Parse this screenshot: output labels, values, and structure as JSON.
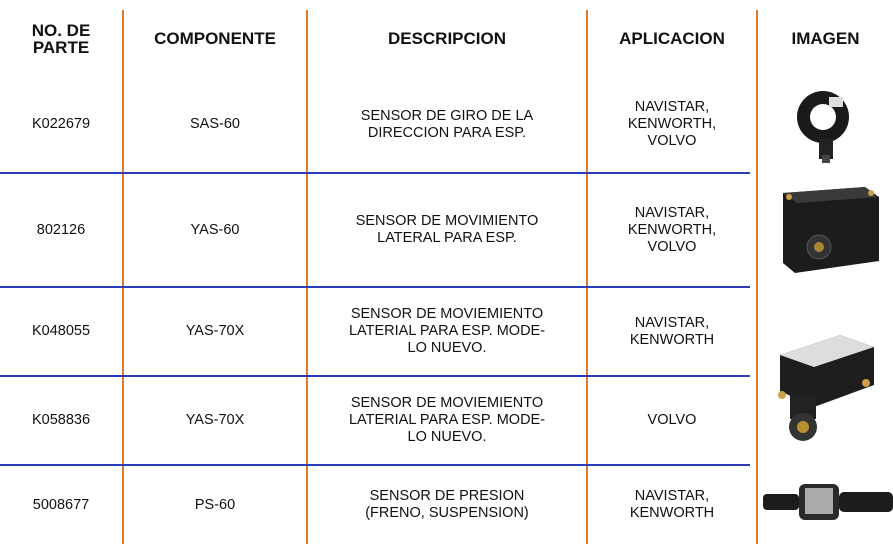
{
  "table": {
    "header": [
      "NO. DE\nPARTE",
      "COMPONENTE",
      "DESCRIPCION",
      "APLICACION",
      "IMAGEN"
    ],
    "rows": [
      [
        "K022679",
        "SAS-60",
        "SENSOR DE GIRO DE LA\nDIRECCION PARA ESP.",
        "NAVISTAR,\nKENWORTH,\nVOLVO"
      ],
      [
        "802126",
        "YAS-60",
        "SENSOR DE MOVIMIENTO\nLATERAL PARA ESP.",
        "NAVISTAR,\nKENWORTH,\nVOLVO"
      ],
      [
        "K048055",
        "YAS-70X",
        "SENSOR DE MOVIEMIENTO\nLATERIAL PARA ESP. MODE-\nLO NUEVO.",
        "NAVISTAR,\nKENWORTH"
      ],
      [
        "K058836",
        "YAS-70X",
        "SENSOR DE MOVIEMIENTO\nLATERIAL PARA ESP. MODE-\nLO NUEVO.",
        "VOLVO"
      ],
      [
        "5008677",
        "PS-60",
        "SENSOR DE PRESION\n(FRENO, SUSPENSION)",
        "NAVISTAR,\nKENWORTH"
      ]
    ]
  }
}
